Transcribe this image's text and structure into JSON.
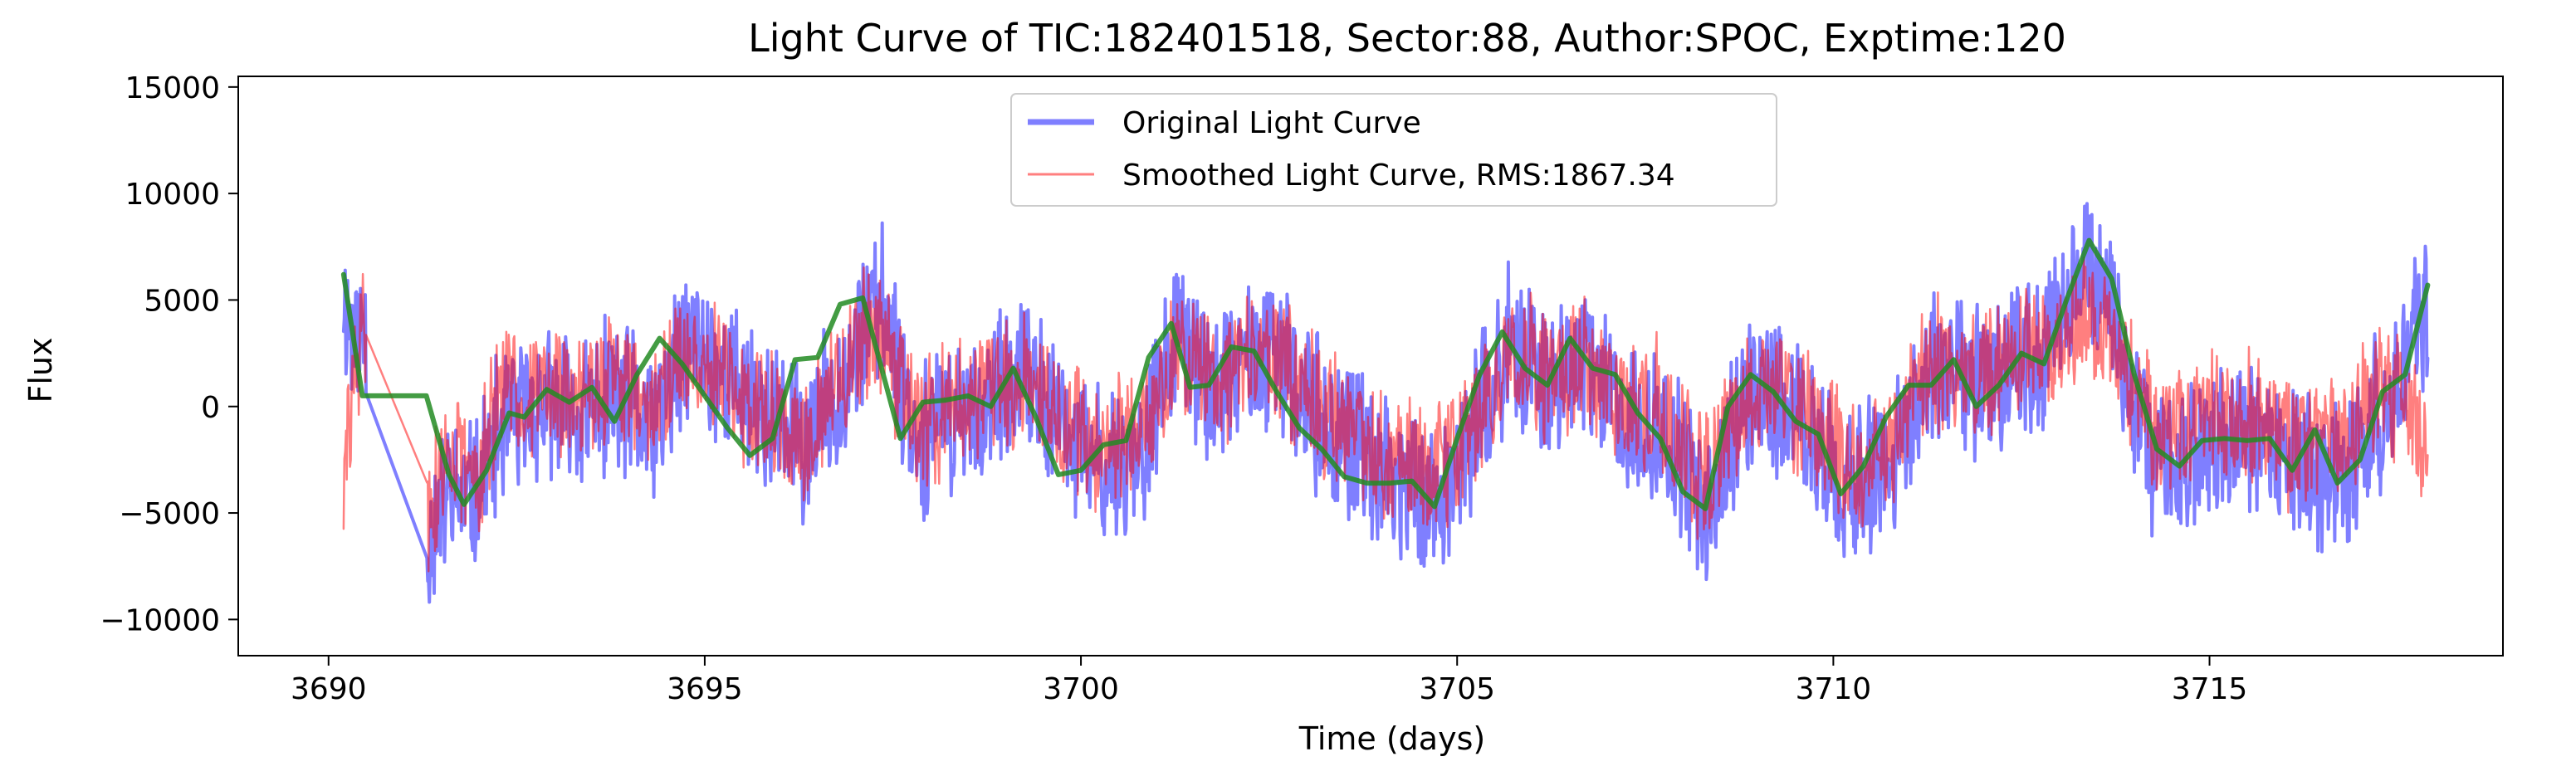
{
  "chart_data": {
    "type": "line",
    "title": "Light Curve of TIC:182401518, Sector:88, Author:SPOC, Exptime:120",
    "xlabel": "Time (days)",
    "ylabel": "Flux",
    "xlim": [
      3688.8,
      3718.9
    ],
    "ylim": [
      -11700,
      15500
    ],
    "xticks": [
      3690,
      3695,
      3700,
      3705,
      3710,
      3715
    ],
    "xtick_labels": [
      "3690",
      "3695",
      "3700",
      "3705",
      "3710",
      "3715"
    ],
    "yticks": [
      -10000,
      -5000,
      0,
      5000,
      10000,
      15000
    ],
    "ytick_labels": [
      "−10000",
      "−5000",
      "0",
      "5000",
      "10000",
      "15000"
    ],
    "grid": false,
    "legend_placement": "upper center",
    "series": [
      {
        "name": "Original Light Curve",
        "color": "#0000ff",
        "opacity": 0.5,
        "style": "noisy light curve",
        "x": [
          3690.2,
          3690.35,
          3690.5,
          3691.3,
          3691.6,
          3691.9,
          3692.3,
          3692.8,
          3693.3,
          3693.8,
          3694.3,
          3694.8,
          3695.3,
          3695.8,
          3696.3,
          3696.8,
          3697.1,
          3697.4,
          3697.8,
          3698.3,
          3698.8,
          3699.3,
          3699.8,
          3700.3,
          3700.8,
          3701.3,
          3701.8,
          3702.3,
          3702.8,
          3703.3,
          3703.8,
          3704.3,
          3704.7,
          3705.2,
          3705.7,
          3706.2,
          3706.7,
          3707.2,
          3707.7,
          3708.3,
          3708.8,
          3709.3,
          3709.8,
          3710.3,
          3710.8,
          3711.3,
          3711.8,
          3712.3,
          3712.8,
          3713.4,
          3713.8,
          3714.3,
          3714.8,
          3715.3,
          3715.8,
          3716.3,
          3716.8,
          3717.3,
          3717.9
        ],
        "y": [
          5000,
          3000,
          4000,
          -6500,
          -4000,
          -4500,
          -1000,
          0,
          -500,
          500,
          -1000,
          3000,
          1500,
          -500,
          -2000,
          1000,
          3500,
          5000,
          -1500,
          -500,
          0,
          1500,
          -1500,
          -3000,
          -2000,
          3500,
          500,
          2500,
          1500,
          -1000,
          -2500,
          -3500,
          -4500,
          -1500,
          3000,
          1000,
          2000,
          -500,
          -1000,
          -5000,
          0,
          500,
          -2000,
          -4000,
          -2500,
          1500,
          1000,
          2000,
          2500,
          7500,
          3000,
          -3000,
          -2000,
          -1500,
          -2000,
          -3000,
          -3000,
          0,
          5000
        ]
      },
      {
        "name": "Smoothed Light Curve, RMS:1867.34",
        "color": "#ff0000",
        "opacity": 0.5,
        "style": "noisy light curve",
        "x": [
          3690.2,
          3690.35,
          3690.5,
          3691.3,
          3691.6,
          3691.9,
          3692.3,
          3692.8,
          3693.3,
          3693.8,
          3694.3,
          3694.8,
          3695.3,
          3695.8,
          3696.3,
          3696.8,
          3697.1,
          3697.4,
          3697.8,
          3698.3,
          3698.8,
          3699.3,
          3699.8,
          3700.3,
          3700.8,
          3701.3,
          3701.8,
          3702.3,
          3702.8,
          3703.3,
          3703.8,
          3704.3,
          3704.7,
          3705.2,
          3705.7,
          3706.2,
          3706.7,
          3707.2,
          3707.7,
          3708.3,
          3708.8,
          3709.3,
          3709.8,
          3710.3,
          3710.8,
          3711.3,
          3711.8,
          3712.3,
          3712.8,
          3713.4,
          3713.8,
          3714.3,
          3714.8,
          3715.3,
          3715.8,
          3716.3,
          3716.8,
          3717.3,
          3717.9
        ],
        "y": [
          -4000,
          2000,
          4000,
          -5500,
          -2000,
          -3500,
          500,
          1000,
          0,
          1500,
          0,
          2500,
          1000,
          0,
          -1500,
          1500,
          3000,
          3500,
          -1000,
          0,
          500,
          1500,
          -1000,
          -2000,
          -1000,
          2500,
          1000,
          2500,
          1500,
          -500,
          -1500,
          -2500,
          -3000,
          -1000,
          2500,
          1500,
          2500,
          0,
          0,
          -3500,
          500,
          1000,
          -1000,
          -3000,
          -1500,
          2000,
          1500,
          2500,
          2500,
          4500,
          2500,
          -1500,
          -500,
          -500,
          -1000,
          -2000,
          -1500,
          1000,
          -2000
        ]
      },
      {
        "name": "",
        "color": "#228b22",
        "opacity": 0.85,
        "style": "smooth line",
        "x": [
          3690.2,
          3690.45,
          3691.3,
          3691.6,
          3691.8,
          3692.1,
          3692.4,
          3692.6,
          3692.9,
          3693.2,
          3693.5,
          3693.8,
          3694.1,
          3694.4,
          3694.7,
          3695.0,
          3695.3,
          3695.6,
          3695.9,
          3696.2,
          3696.5,
          3696.8,
          3697.1,
          3697.35,
          3697.6,
          3697.9,
          3698.2,
          3698.5,
          3698.8,
          3699.1,
          3699.4,
          3699.7,
          3700.0,
          3700.3,
          3700.6,
          3700.9,
          3701.2,
          3701.45,
          3701.7,
          3702.0,
          3702.3,
          3702.6,
          3702.9,
          3703.2,
          3703.5,
          3703.8,
          3704.1,
          3704.4,
          3704.7,
          3705.0,
          3705.3,
          3705.6,
          3705.9,
          3706.2,
          3706.5,
          3706.8,
          3707.1,
          3707.4,
          3707.7,
          3708.0,
          3708.3,
          3708.6,
          3708.9,
          3709.2,
          3709.5,
          3709.8,
          3710.1,
          3710.4,
          3710.7,
          3711.0,
          3711.3,
          3711.6,
          3711.9,
          3712.2,
          3712.5,
          3712.8,
          3713.1,
          3713.4,
          3713.7,
          3714.0,
          3714.3,
          3714.6,
          3714.9,
          3715.2,
          3715.5,
          3715.8,
          3716.1,
          3716.4,
          3716.7,
          3717.0,
          3717.3,
          3717.6,
          3717.9
        ],
        "y": [
          6200,
          500,
          500,
          -3200,
          -4600,
          -3000,
          -300,
          -500,
          800,
          200,
          900,
          -700,
          1500,
          3200,
          2000,
          500,
          -1000,
          -2300,
          -1500,
          2200,
          2300,
          4800,
          5100,
          1800,
          -1500,
          200,
          300,
          500,
          0,
          1800,
          -500,
          -3200,
          -3000,
          -1800,
          -1600,
          2300,
          3900,
          900,
          1000,
          2800,
          2600,
          700,
          -1000,
          -2000,
          -3300,
          -3600,
          -3600,
          -3500,
          -4700,
          -1500,
          1500,
          3500,
          1800,
          1000,
          3200,
          1800,
          1500,
          -300,
          -1500,
          -4000,
          -4800,
          0,
          1500,
          700,
          -700,
          -1300,
          -4100,
          -2800,
          -500,
          1000,
          1000,
          2200,
          0,
          1000,
          2500,
          2000,
          5000,
          7800,
          6000,
          1500,
          -2000,
          -2800,
          -1600,
          -1500,
          -1600,
          -1500,
          -3000,
          -1100,
          -3600,
          -2500,
          700,
          1500,
          5700
        ]
      }
    ]
  }
}
